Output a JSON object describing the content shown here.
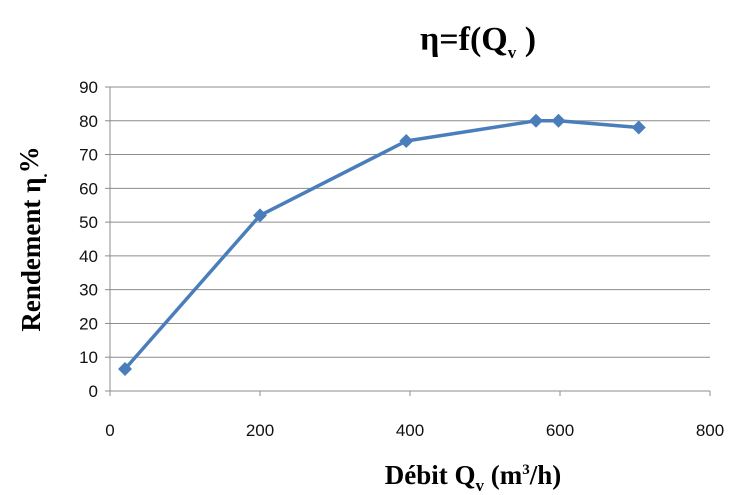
{
  "chart_data": {
    "type": "line",
    "title": {
      "main": "η=f(Q",
      "sub": "v",
      "close": " )"
    },
    "xlabel": {
      "main": "Débit Q",
      "sub": "v",
      "unit_a": " (m",
      "sup": "3",
      "unit_b": "/h)"
    },
    "ylabel": {
      "main": "Rendement  η",
      "sub": ".",
      "unit": "%"
    },
    "xlim": [
      0,
      800
    ],
    "ylim": [
      0,
      90
    ],
    "xticks": [
      0,
      200,
      400,
      600,
      800
    ],
    "yticks": [
      0,
      10,
      20,
      30,
      40,
      50,
      60,
      70,
      80,
      90
    ],
    "grid": true,
    "series": [
      {
        "color": "#4a7ebb",
        "marker": "diamond",
        "x": [
          20,
          200,
          395,
          568,
          598,
          705
        ],
        "y": [
          6.5,
          52,
          74,
          80,
          80,
          78
        ]
      }
    ]
  }
}
